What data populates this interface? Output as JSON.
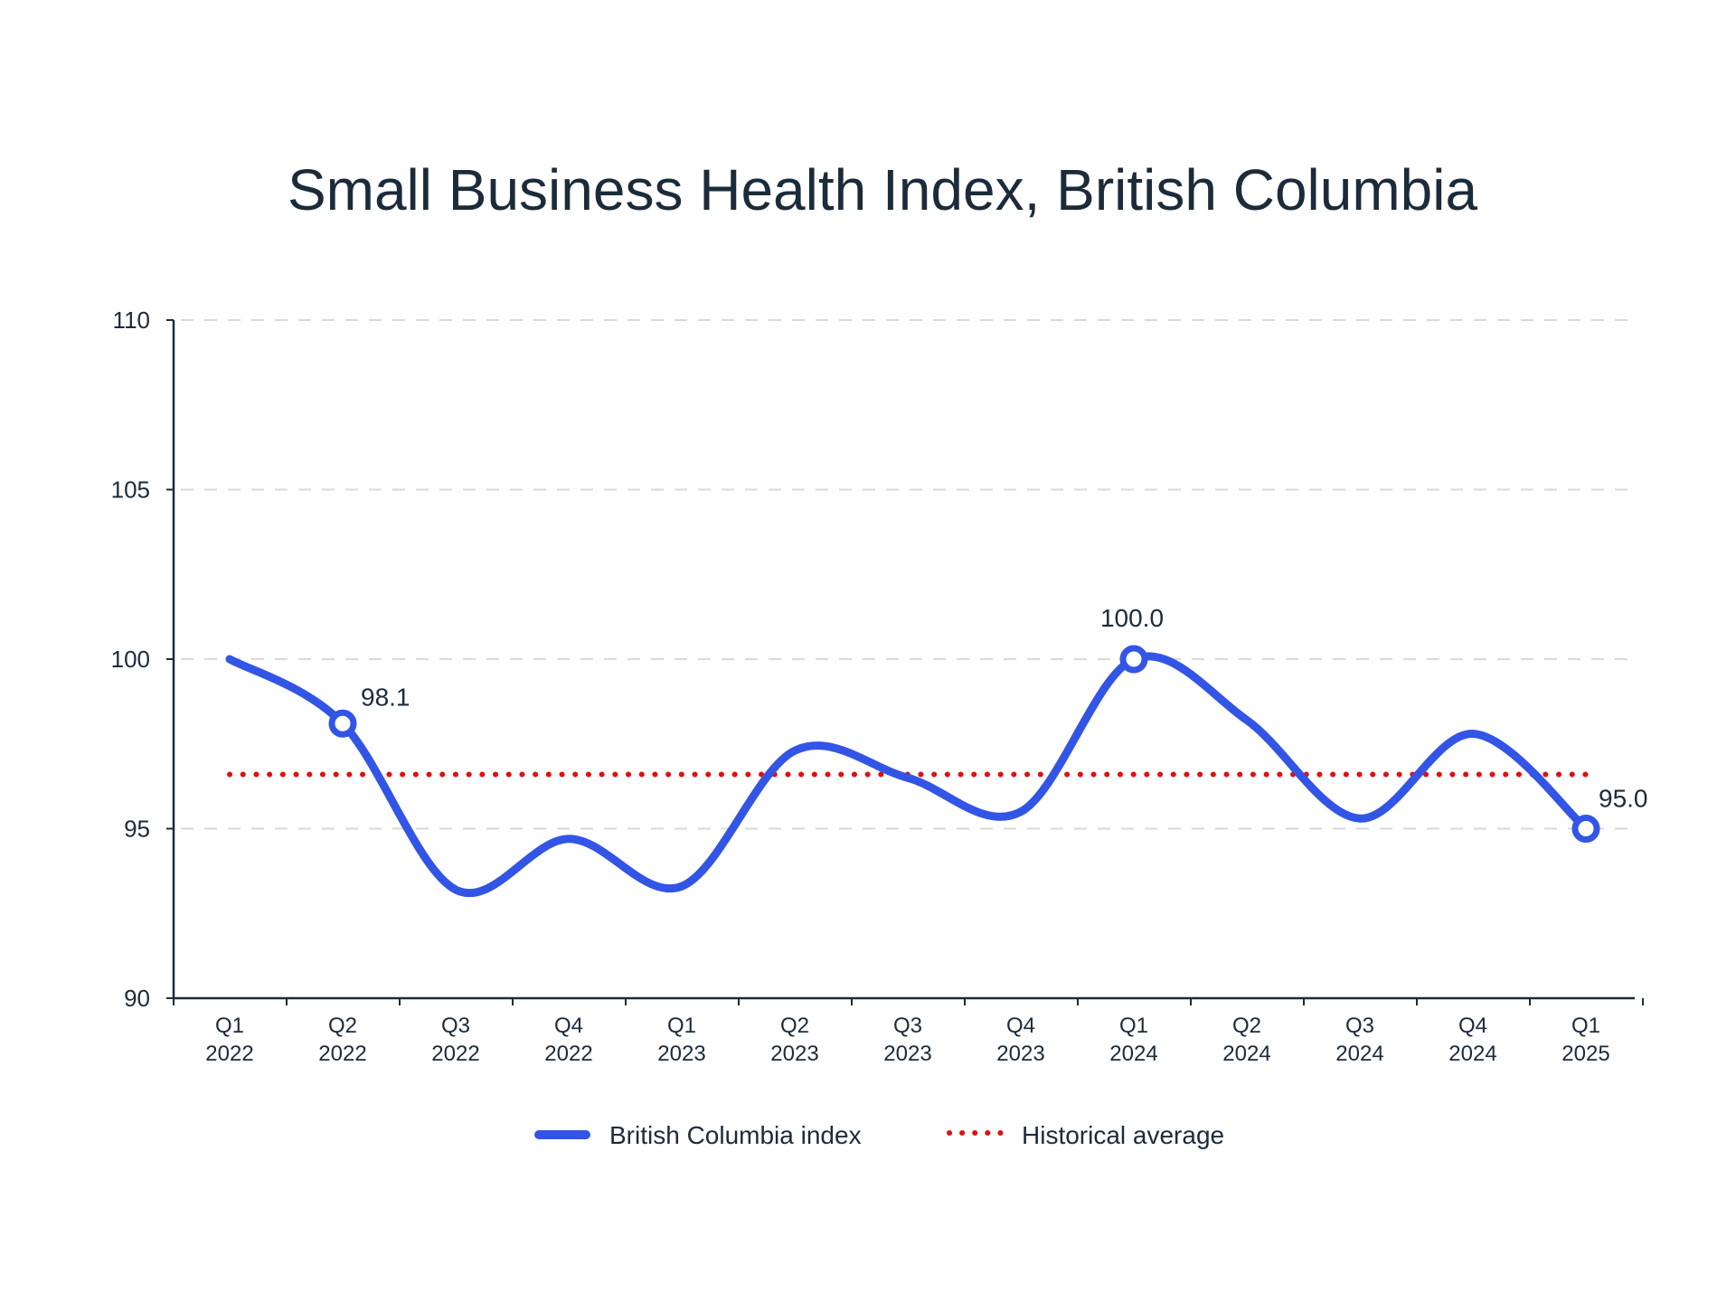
{
  "chart_data": {
    "type": "line",
    "title": "Small Business Health Index, British Columbia",
    "xlabel": "",
    "ylabel": "",
    "ylim": [
      90,
      110
    ],
    "yticks": [
      "90",
      "95",
      "100",
      "105",
      "110"
    ],
    "grid": true,
    "categories": [
      [
        "Q1",
        "2022"
      ],
      [
        "Q2",
        "2022"
      ],
      [
        "Q3",
        "2022"
      ],
      [
        "Q4",
        "2022"
      ],
      [
        "Q1",
        "2023"
      ],
      [
        "Q2",
        "2023"
      ],
      [
        "Q3",
        "2023"
      ],
      [
        "Q4",
        "2023"
      ],
      [
        "Q1",
        "2024"
      ],
      [
        "Q2",
        "2024"
      ],
      [
        "Q3",
        "2024"
      ],
      [
        "Q4",
        "2024"
      ],
      [
        "Q1",
        "2025"
      ]
    ],
    "series": [
      {
        "name": "British Columbia index",
        "color": "#3355e6",
        "values": [
          100.0,
          98.1,
          93.2,
          94.7,
          93.3,
          97.3,
          96.5,
          95.5,
          100.0,
          98.2,
          95.3,
          97.8,
          95.0
        ]
      }
    ],
    "reference_line": {
      "name": "Historical average",
      "color": "#e01010",
      "value": 96.6
    },
    "annotations": [
      {
        "index": 1,
        "text": "98.1"
      },
      {
        "index": 8,
        "text": "100.0"
      },
      {
        "index": 12,
        "text": "95.0"
      }
    ],
    "legend_position": "bottom-center"
  }
}
